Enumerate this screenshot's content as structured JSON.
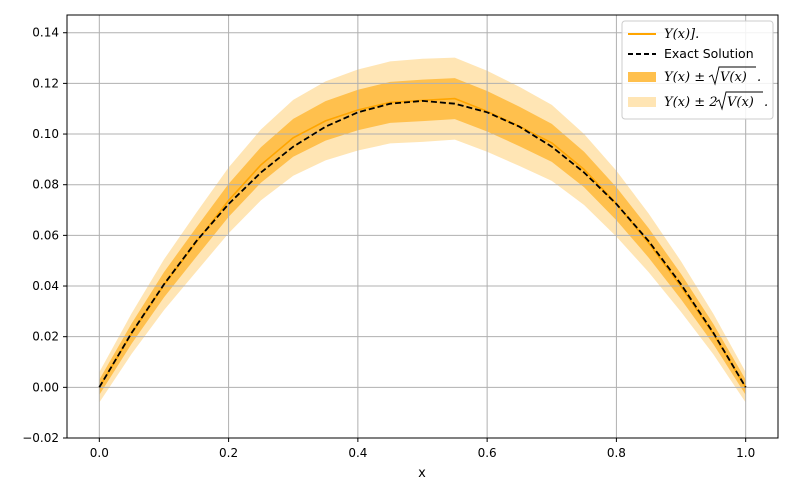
{
  "chart_data": {
    "type": "line",
    "title": "",
    "xlabel": "x",
    "ylabel": "",
    "xlim": [
      -0.05,
      1.05
    ],
    "ylim": [
      -0.02,
      0.147
    ],
    "xticks": [
      0.0,
      0.2,
      0.4,
      0.6,
      0.8,
      1.0
    ],
    "xtick_labels": [
      "0.0",
      "0.2",
      "0.4",
      "0.6",
      "0.8",
      "1.0"
    ],
    "yticks": [
      -0.02,
      0.0,
      0.02,
      0.04,
      0.06,
      0.08,
      0.1,
      0.12,
      0.14
    ],
    "ytick_labels": [
      "−0.02",
      "0.00",
      "0.02",
      "0.04",
      "0.06",
      "0.08",
      "0.10",
      "0.12",
      "0.14"
    ],
    "grid": true,
    "legend_position": "top-right",
    "series": [
      {
        "name": "Y(x)].",
        "color": "#ffa500",
        "style": "solid",
        "x": [
          0.0,
          0.05,
          0.1,
          0.15,
          0.2,
          0.25,
          0.3,
          0.35,
          0.4,
          0.45,
          0.5,
          0.55,
          0.6,
          0.65,
          0.7,
          0.75,
          0.8,
          0.85,
          0.9,
          0.95,
          1.0
        ],
        "y": [
          0.0,
          0.0212,
          0.0405,
          0.0573,
          0.0738,
          0.0878,
          0.0985,
          0.1052,
          0.1095,
          0.1125,
          0.1133,
          0.114,
          0.109,
          0.103,
          0.0965,
          0.086,
          0.0725,
          0.057,
          0.0398,
          0.021,
          0.0
        ]
      },
      {
        "name": "Exact Solution",
        "color": "#000000",
        "style": "dashed",
        "x": [
          0.0,
          0.05,
          0.1,
          0.15,
          0.2,
          0.25,
          0.3,
          0.35,
          0.4,
          0.45,
          0.5,
          0.55,
          0.6,
          0.65,
          0.7,
          0.75,
          0.8,
          0.85,
          0.9,
          0.95,
          1.0
        ],
        "y": [
          0.0,
          0.0215,
          0.0407,
          0.0577,
          0.0724,
          0.0848,
          0.095,
          0.1029,
          0.1086,
          0.112,
          0.1131,
          0.112,
          0.1086,
          0.1029,
          0.095,
          0.0848,
          0.0724,
          0.0577,
          0.0407,
          0.0215,
          0.0
        ]
      },
      {
        "name": "Y(x) ± √V(x).",
        "color": "#ffc04d",
        "type": "band",
        "half_width": [
          0.003,
          0.004,
          0.005,
          0.0058,
          0.0065,
          0.007,
          0.0075,
          0.0078,
          0.008,
          0.0081,
          0.0082,
          0.0081,
          0.008,
          0.0078,
          0.0075,
          0.007,
          0.0065,
          0.0058,
          0.005,
          0.004,
          0.003
        ]
      },
      {
        "name": "Y(x) ± 2√V(x).",
        "color": "#ffe5b4",
        "type": "band",
        "half_width": [
          0.006,
          0.008,
          0.01,
          0.0116,
          0.013,
          0.014,
          0.015,
          0.0156,
          0.016,
          0.0162,
          0.0164,
          0.0162,
          0.016,
          0.0156,
          0.015,
          0.014,
          0.013,
          0.0116,
          0.01,
          0.008,
          0.006
        ]
      }
    ]
  },
  "legend": {
    "items": [
      {
        "label_pre": "Y(x)].",
        "radicand": "",
        "post": ""
      },
      {
        "label_pre": "Exact Solution",
        "radicand": "",
        "post": ""
      },
      {
        "label_pre": "Y(x) ± ",
        "radicand": "V(x)",
        "post": "."
      },
      {
        "label_pre": "Y(x) ± 2",
        "radicand": "V(x)",
        "post": "."
      }
    ]
  }
}
